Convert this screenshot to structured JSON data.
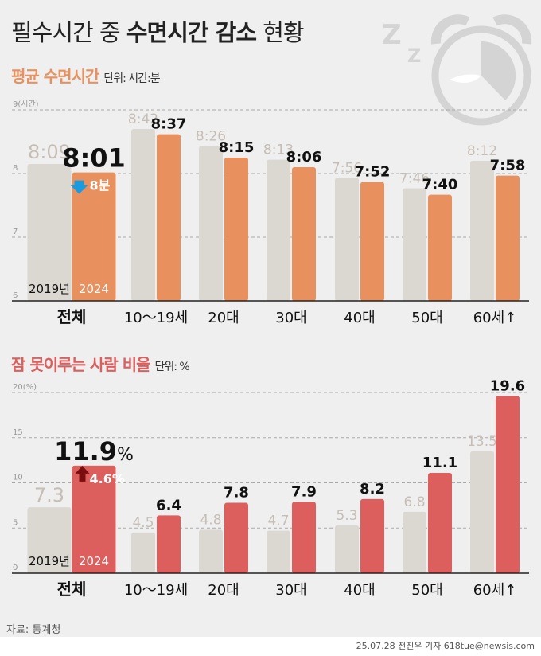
{
  "title": {
    "normal": "필수시간 중 ",
    "bold": "수면시간 감소",
    "tail": " 현황"
  },
  "colors": {
    "gray": "#dbd7d1",
    "orange": "#e8915e",
    "red": "#dc5f5e",
    "down_arrow": "#1a9be0",
    "up_arrow": "#7a0d0d",
    "bg": "#efefef"
  },
  "icons": [
    "zzz-icon",
    "alarm-clock-icon"
  ],
  "chart_data": [
    {
      "type": "bar",
      "subtitle": "평균 수면시간",
      "unit": "단위: 시간:분",
      "categories": [
        "전체",
        "10～19세",
        "20대",
        "30대",
        "40대",
        "50대",
        "60세↑"
      ],
      "series": [
        {
          "name": "2019년",
          "values": [
            "8:09",
            "8:42",
            "8:26",
            "8:13",
            "7:56",
            "7:46",
            "8:12"
          ]
        },
        {
          "name": "2024",
          "values": [
            "8:01",
            "8:37",
            "8:15",
            "8:06",
            "7:52",
            "7:40",
            "7:58"
          ]
        }
      ],
      "yticks": [
        "6",
        "7",
        "8",
        "9(시간)"
      ],
      "ylim": [
        6,
        9
      ],
      "grid": true,
      "annotation": "8분",
      "annotation_direction": "down"
    },
    {
      "type": "bar",
      "subtitle": "잠 못이루는 사람 비율",
      "unit": "단위: %",
      "categories": [
        "전체",
        "10～19세",
        "20대",
        "30대",
        "40대",
        "50대",
        "60세↑"
      ],
      "series": [
        {
          "name": "2019년",
          "values": [
            7.3,
            4.5,
            4.8,
            4.7,
            5.3,
            6.8,
            13.5
          ]
        },
        {
          "name": "2024",
          "values": [
            11.9,
            6.4,
            7.8,
            7.9,
            8.2,
            11.1,
            19.6
          ]
        }
      ],
      "yticks": [
        "0",
        "5",
        "10",
        "15",
        "20(%)"
      ],
      "ylim": [
        0,
        20
      ],
      "grid": true,
      "annotation": "4.6%",
      "annotation_direction": "up",
      "total_suffix": "%"
    }
  ],
  "source": "자료: 통계청",
  "credit": "25.07.28 전진우 기자 618tue@newsis.com"
}
